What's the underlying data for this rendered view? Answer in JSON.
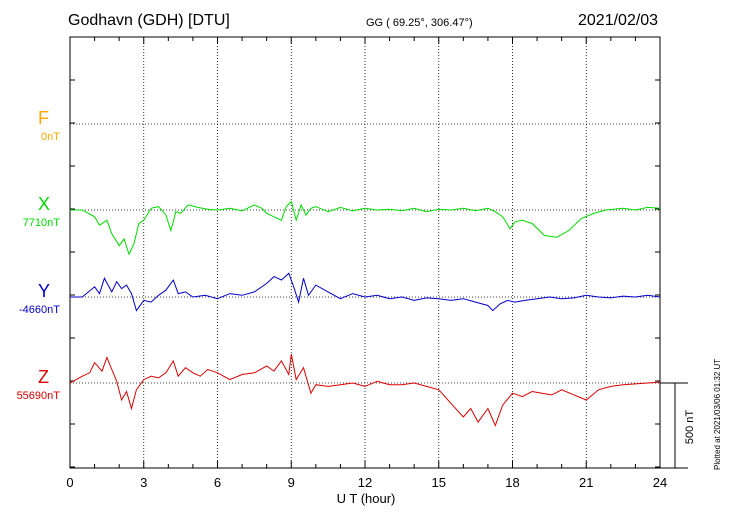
{
  "header": {
    "station": "Godhavn (GDH)  [DTU]",
    "coords": "GG ( 69.25°, 306.47°)",
    "date": "2021/02/03"
  },
  "components": [
    {
      "letter": "F",
      "baseline": "0nT",
      "color": "#ffa500"
    },
    {
      "letter": "X",
      "baseline": "7710nT",
      "color": "#00dd00"
    },
    {
      "letter": "Y",
      "baseline": "-4660nT",
      "color": "#0000cc"
    },
    {
      "letter": "Z",
      "baseline": "55690nT",
      "color": "#dd0000"
    }
  ],
  "scale_label": "500 nT",
  "plotted_note": "Plotted at 2021/03/06 01:32 UT",
  "chart_data": {
    "type": "line",
    "xlabel": "U T (hour)",
    "xlim": [
      0,
      24
    ],
    "xticks": [
      "0",
      "3",
      "6",
      "9",
      "12",
      "15",
      "18",
      "21",
      "24"
    ],
    "y_unit": "nT",
    "scale_bar_nT": 500,
    "series": [
      {
        "name": "X",
        "color": "#00dd00",
        "x": [
          0,
          0.5,
          1,
          1.2,
          1.5,
          1.7,
          2,
          2.2,
          2.4,
          2.6,
          2.8,
          3,
          3.3,
          3.6,
          3.9,
          4.1,
          4.2,
          4.3,
          4.5,
          4.8,
          5.2,
          5.6,
          6,
          6.5,
          7,
          7.5,
          7.8,
          8,
          8.3,
          8.6,
          8.8,
          9,
          9.2,
          9.4,
          9.6,
          9.8,
          10,
          10.5,
          11,
          11.5,
          12,
          12.5,
          13,
          13.5,
          14,
          14.5,
          15,
          15.5,
          16,
          16.5,
          17,
          17.3,
          17.6,
          17.9,
          18.1,
          18.4,
          18.8,
          19.3,
          19.8,
          20.3,
          20.8,
          21.3,
          21.8,
          22.5,
          23,
          23.5,
          24
        ],
        "y": [
          0,
          0,
          -40,
          -90,
          -60,
          -140,
          -210,
          -170,
          -260,
          -200,
          -80,
          -60,
          10,
          20,
          -30,
          -120,
          -70,
          -10,
          -20,
          30,
          15,
          5,
          0,
          10,
          -5,
          30,
          10,
          -20,
          -40,
          -60,
          20,
          50,
          -60,
          30,
          -30,
          10,
          20,
          -10,
          15,
          -5,
          10,
          0,
          5,
          -5,
          10,
          -10,
          5,
          0,
          10,
          -5,
          10,
          -10,
          -40,
          -110,
          -70,
          -60,
          -80,
          -150,
          -160,
          -120,
          -50,
          -20,
          0,
          10,
          0,
          15,
          10
        ]
      },
      {
        "name": "Y",
        "color": "#0000cc",
        "x": [
          0,
          0.5,
          1,
          1.2,
          1.4,
          1.7,
          1.9,
          2.1,
          2.3,
          2.5,
          2.7,
          3,
          3.3,
          3.6,
          3.9,
          4.2,
          4.4,
          4.7,
          5,
          5.5,
          6,
          6.5,
          7,
          7.5,
          8,
          8.3,
          8.6,
          8.9,
          9.1,
          9.3,
          9.5,
          9.7,
          10,
          10.5,
          11,
          11.5,
          12,
          12.5,
          13,
          13.5,
          14,
          14.5,
          15,
          15.5,
          16,
          16.5,
          17,
          17.2,
          17.5,
          17.8,
          18.1,
          18.5,
          19,
          19.5,
          20,
          20.5,
          21,
          21.5,
          22,
          22.5,
          23,
          23.5,
          24
        ],
        "y": [
          0,
          0,
          60,
          20,
          110,
          30,
          90,
          50,
          70,
          20,
          -80,
          -20,
          -30,
          10,
          40,
          100,
          20,
          30,
          0,
          10,
          -10,
          20,
          10,
          30,
          80,
          120,
          100,
          140,
          60,
          -30,
          110,
          10,
          70,
          30,
          -10,
          20,
          0,
          10,
          -10,
          0,
          -20,
          -5,
          -10,
          -20,
          -10,
          -30,
          -50,
          -80,
          -40,
          -20,
          -30,
          -20,
          -10,
          0,
          -10,
          -5,
          10,
          0,
          -5,
          5,
          0,
          10,
          0
        ]
      },
      {
        "name": "Z",
        "color": "#dd0000",
        "x": [
          0,
          0.5,
          0.8,
          1,
          1.3,
          1.5,
          1.7,
          1.9,
          2.1,
          2.3,
          2.5,
          2.7,
          3,
          3.3,
          3.6,
          3.9,
          4.2,
          4.4,
          4.7,
          5,
          5.3,
          5.6,
          6,
          6.5,
          7,
          7.5,
          8,
          8.3,
          8.6,
          8.9,
          9,
          9.2,
          9.5,
          9.8,
          10,
          10.5,
          11,
          11.5,
          12,
          12.5,
          13,
          13.5,
          14,
          14.5,
          15,
          15.5,
          16,
          16.3,
          16.6,
          17,
          17.3,
          17.6,
          18,
          18.4,
          18.8,
          19.2,
          19.6,
          20,
          20.5,
          21,
          21.5,
          22,
          22.5,
          23,
          23.5,
          24
        ],
        "y": [
          0,
          40,
          60,
          120,
          70,
          150,
          80,
          10,
          -100,
          -50,
          -150,
          -40,
          20,
          40,
          30,
          60,
          130,
          40,
          90,
          60,
          40,
          80,
          60,
          20,
          50,
          60,
          100,
          70,
          130,
          50,
          170,
          20,
          90,
          -60,
          -10,
          -20,
          -10,
          0,
          -20,
          10,
          -10,
          -10,
          0,
          -20,
          -40,
          -120,
          -200,
          -150,
          -230,
          -150,
          -250,
          -130,
          -60,
          -80,
          -50,
          -60,
          -70,
          -40,
          -70,
          -100,
          -40,
          -20,
          -10,
          -5,
          0,
          5
        ]
      }
    ]
  }
}
